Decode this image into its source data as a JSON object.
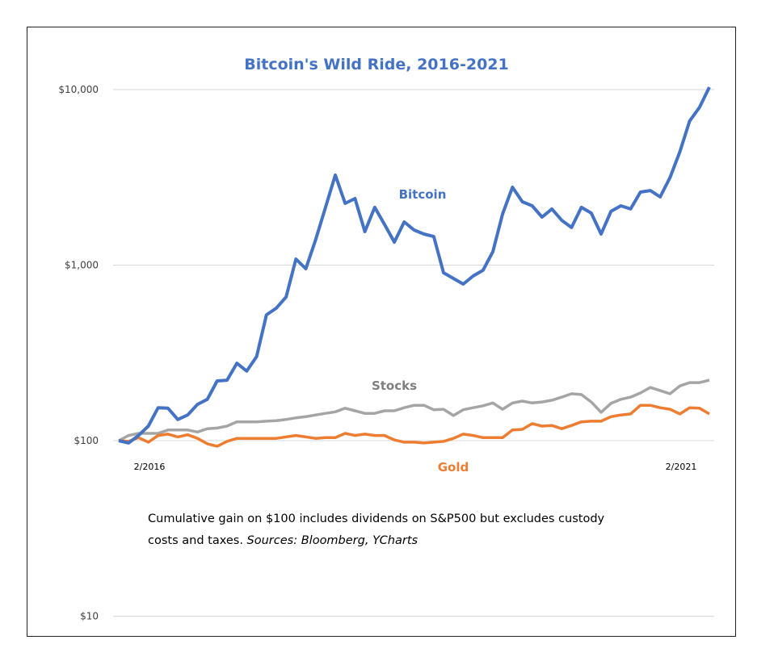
{
  "chart_data": {
    "type": "line",
    "title": "Bitcoin's Wild Ride, 2016-2021",
    "y_scale": "log",
    "ylim": [
      10,
      10000
    ],
    "y_ticks": [
      {
        "value": 10000,
        "label": "$10,000"
      },
      {
        "value": 1000,
        "label": "$1,000"
      },
      {
        "value": 100,
        "label": "$100"
      },
      {
        "value": 10,
        "label": "$10"
      }
    ],
    "grid": true,
    "x_tick_labels": [
      "2/2016",
      "2/2021"
    ],
    "x": [
      "2016-02",
      "2016-03",
      "2016-04",
      "2016-05",
      "2016-06",
      "2016-07",
      "2016-08",
      "2016-09",
      "2016-10",
      "2016-11",
      "2016-12",
      "2017-01",
      "2017-02",
      "2017-03",
      "2017-04",
      "2017-05",
      "2017-06",
      "2017-07",
      "2017-08",
      "2017-09",
      "2017-10",
      "2017-11",
      "2017-12",
      "2018-01",
      "2018-02",
      "2018-03",
      "2018-04",
      "2018-05",
      "2018-06",
      "2018-07",
      "2018-08",
      "2018-09",
      "2018-10",
      "2018-11",
      "2018-12",
      "2019-01",
      "2019-02",
      "2019-03",
      "2019-04",
      "2019-05",
      "2019-06",
      "2019-07",
      "2019-08",
      "2019-09",
      "2019-10",
      "2019-11",
      "2019-12",
      "2020-01",
      "2020-02",
      "2020-03",
      "2020-04",
      "2020-05",
      "2020-06",
      "2020-07",
      "2020-08",
      "2020-09",
      "2020-10",
      "2020-11",
      "2020-12",
      "2021-01",
      "2021-02"
    ],
    "series": [
      {
        "name": "Bitcoin",
        "color": "#4472C4",
        "values": [
          100,
          97,
          107,
          121,
          154,
          153,
          132,
          140,
          161,
          172,
          219,
          221,
          276,
          249,
          301,
          521,
          568,
          658,
          1083,
          953,
          1396,
          2133,
          3258,
          2248,
          2395,
          1552,
          2133,
          1706,
          1352,
          1762,
          1585,
          1503,
          1455,
          904,
          840,
          780,
          867,
          934,
          1191,
          1959,
          2779,
          2296,
          2178,
          1877,
          2089,
          1799,
          1637,
          2133,
          1980,
          1503,
          2023,
          2178,
          2089,
          2606,
          2661,
          2447,
          3155,
          4426,
          6622,
          7925,
          10322
        ]
      },
      {
        "name": "Stocks",
        "color": "#A5A5A5",
        "values": [
          100,
          107,
          110,
          110,
          110,
          115,
          115,
          115,
          112,
          117,
          118,
          121,
          128,
          128,
          128,
          129,
          130,
          132,
          135,
          137,
          140,
          143,
          146,
          153,
          148,
          143,
          143,
          148,
          148,
          154,
          159,
          159,
          150,
          151,
          139,
          150,
          154,
          158,
          164,
          151,
          164,
          168,
          164,
          166,
          170,
          177,
          185,
          183,
          166,
          145,
          163,
          172,
          177,
          187,
          201,
          193,
          185,
          205,
          214,
          214,
          221
        ]
      },
      {
        "name": "Gold",
        "color": "#ED7D31",
        "values": [
          100,
          99,
          104,
          98,
          107,
          109,
          105,
          108,
          103,
          96,
          93,
          99,
          103,
          103,
          103,
          103,
          103,
          105,
          107,
          105,
          103,
          104,
          104,
          110,
          107,
          109,
          107,
          107,
          101,
          98,
          98,
          97,
          98,
          99,
          103,
          109,
          107,
          104,
          104,
          104,
          115,
          116,
          125,
          121,
          122,
          117,
          122,
          128,
          129,
          129,
          137,
          140,
          142,
          159,
          159,
          154,
          151,
          142,
          154,
          153,
          142
        ]
      }
    ]
  },
  "note": {
    "line1": "Cumulative gain on $100 includes dividends on S&P500 but excludes custody",
    "line2_text": "costs and taxes. ",
    "line2_sources": "Sources: Bloomberg, YCharts"
  }
}
